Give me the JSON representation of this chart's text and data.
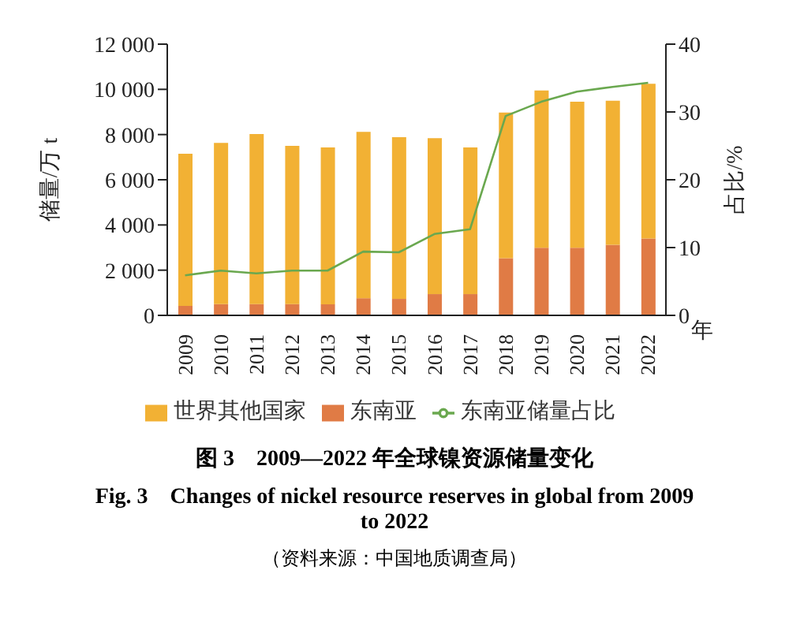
{
  "chart_data": {
    "type": "bar",
    "stacked": true,
    "title": "图 3　2009—2022 年全球镍资源储量变化",
    "subtitle": "Fig. 3　Changes of nickel resource reserves in global from 2009 to 2022",
    "annotations": [
      "（资料来源：中国地质调查局）"
    ],
    "xlabel": "年",
    "ylabel": "储量/万 t",
    "y2label": "占比/%",
    "categories": [
      "2009",
      "2010",
      "2011",
      "2012",
      "2013",
      "2014",
      "2015",
      "2016",
      "2017",
      "2018",
      "2019",
      "2020",
      "2021",
      "2022"
    ],
    "series": [
      {
        "name": "东南亚",
        "color": "#e07b45",
        "values": [
          420,
          500,
          500,
          500,
          490,
          760,
          730,
          940,
          940,
          2530,
          2990,
          2990,
          3120,
          3400
        ]
      },
      {
        "name": "世界其他国家",
        "color": "#f2b134",
        "values": [
          6730,
          7130,
          7520,
          7000,
          6940,
          7360,
          7150,
          6900,
          6490,
          6440,
          6960,
          6460,
          6380,
          6850
        ]
      },
      {
        "name": "东南亚储量占比",
        "type": "line",
        "axis": "y2",
        "color": "#6aa84f",
        "marker": "none",
        "values": [
          5.9,
          6.6,
          6.2,
          6.6,
          6.6,
          9.4,
          9.3,
          12.0,
          12.7,
          29.4,
          31.5,
          33.0,
          33.7,
          34.3
        ]
      }
    ],
    "ylim": [
      0,
      12000
    ],
    "yticks": [
      {
        "value": 0,
        "label": "0"
      },
      {
        "value": 2000,
        "label": "2 000"
      },
      {
        "value": 4000,
        "label": "4 000"
      },
      {
        "value": 6000,
        "label": "6 000"
      },
      {
        "value": 8000,
        "label": "8 000"
      },
      {
        "value": 10000,
        "label": "10 000"
      },
      {
        "value": 12000,
        "label": "12 000"
      }
    ],
    "y2lim": [
      0,
      40
    ],
    "y2ticks": [
      0,
      10,
      20,
      30,
      40
    ],
    "grid": false,
    "legend": "bottom"
  }
}
